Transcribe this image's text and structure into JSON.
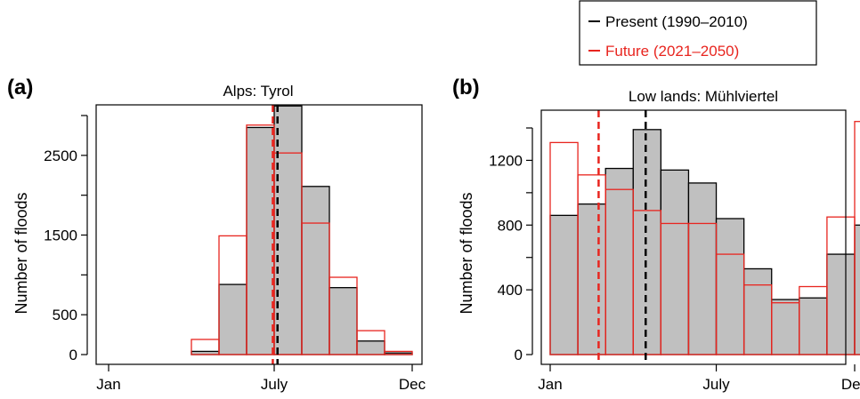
{
  "legend": {
    "present": {
      "label": "Present (1990–2010)",
      "color": "#000000"
    },
    "future": {
      "label": "Future (2021–2050)",
      "color": "#e8251f"
    }
  },
  "colors": {
    "present_fill": "#c0c0c0",
    "present_edge": "#000000",
    "future_edge": "#e8251f"
  },
  "chart_data": [
    {
      "type": "bar",
      "panel": "(a)",
      "title": "Alps: Tyrol",
      "ylabel": "Number of floods",
      "xlabel": "",
      "xticks": [
        "Jan",
        "July",
        "Dec"
      ],
      "x_tick_months": [
        1,
        7,
        12
      ],
      "yticks": [
        0,
        500,
        1500,
        2500
      ],
      "ylim": [
        0,
        3000
      ],
      "xlim": [
        1,
        12
      ],
      "bin_edges": [
        1,
        2,
        3,
        4,
        5,
        6,
        7,
        8,
        9,
        10,
        11,
        12
      ],
      "series": [
        {
          "name": "Present (1990–2010)",
          "values": [
            0,
            0,
            0,
            40,
            880,
            2850,
            3120,
            2110,
            840,
            170,
            20
          ],
          "mean_month": 7.12
        },
        {
          "name": "Future (2021–2050)",
          "values": [
            0,
            0,
            0,
            190,
            1490,
            2880,
            2530,
            1650,
            970,
            300,
            40
          ],
          "mean_month": 6.95
        }
      ],
      "grid": false
    },
    {
      "type": "bar",
      "panel": "(b)",
      "title": "Low lands: Mühlviertel",
      "ylabel": "Number of floods",
      "xlabel": "",
      "xticks": [
        "Jan",
        "July",
        "Dec"
      ],
      "x_tick_months": [
        1,
        7,
        12
      ],
      "yticks": [
        0,
        400,
        800,
        1200
      ],
      "ylim": [
        0,
        1400
      ],
      "xlim": [
        1,
        12
      ],
      "bin_edges": [
        1,
        2,
        3,
        4,
        5,
        6,
        7,
        8,
        9,
        10,
        11,
        12,
        13
      ],
      "series": [
        {
          "name": "Present (1990–2010)",
          "values": [
            860,
            930,
            1150,
            1390,
            1140,
            1060,
            840,
            530,
            340,
            350,
            620,
            800
          ],
          "mean_month": 4.45
        },
        {
          "name": "Future (2021–2050)",
          "values": [
            1310,
            1110,
            1020,
            890,
            810,
            810,
            620,
            430,
            320,
            420,
            850,
            1440
          ],
          "mean_month": 2.75
        }
      ],
      "grid": false
    }
  ]
}
